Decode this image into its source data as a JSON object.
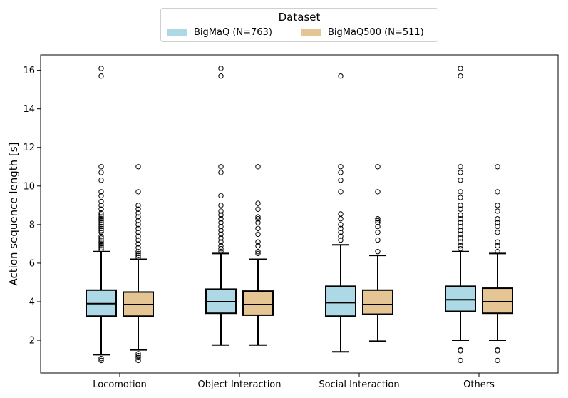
{
  "chart_data": {
    "type": "boxplot",
    "ylabel": "Action sequence length [s]",
    "xlabel": "",
    "ylim": [
      0.3,
      16.8
    ],
    "yticks": [
      2,
      4,
      6,
      8,
      10,
      12,
      14,
      16
    ],
    "categories": [
      "Locomotion",
      "Object Interaction",
      "Social Interaction",
      "Others"
    ],
    "legend": {
      "title": "Dataset",
      "placement": "top-center"
    },
    "series": [
      {
        "name": "BigMaQ (N=763)",
        "color": "#add8e6",
        "boxes": [
          {
            "whislo": 1.25,
            "q1": 3.25,
            "med": 3.9,
            "q3": 4.6,
            "whishi": 6.6,
            "fliers": [
              0.95,
              1.05,
              6.7,
              6.8,
              6.9,
              7.0,
              7.1,
              7.2,
              7.3,
              7.4,
              7.6,
              7.7,
              7.8,
              7.9,
              8.0,
              8.1,
              8.2,
              8.3,
              8.4,
              8.5,
              8.6,
              8.8,
              9.0,
              9.2,
              9.5,
              9.7,
              10.3,
              10.7,
              11.0,
              15.7,
              16.1
            ]
          },
          {
            "whislo": 1.75,
            "q1": 3.4,
            "med": 4.0,
            "q3": 4.65,
            "whishi": 6.5,
            "fliers": [
              6.6,
              6.75,
              6.9,
              7.1,
              7.3,
              7.5,
              7.7,
              7.9,
              8.1,
              8.3,
              8.5,
              8.7,
              9.0,
              9.5,
              10.7,
              11.0,
              15.7,
              16.1
            ]
          },
          {
            "whislo": 1.4,
            "q1": 3.25,
            "med": 3.95,
            "q3": 4.8,
            "whishi": 6.95,
            "fliers": [
              7.2,
              7.4,
              7.6,
              7.8,
              8.0,
              8.3,
              8.55,
              9.7,
              10.3,
              10.7,
              11.0,
              15.7
            ]
          },
          {
            "whislo": 2.0,
            "q1": 3.5,
            "med": 4.1,
            "q3": 4.8,
            "whishi": 6.6,
            "fliers": [
              0.95,
              1.45,
              1.5,
              6.75,
              6.9,
              7.1,
              7.3,
              7.5,
              7.7,
              7.9,
              8.1,
              8.3,
              8.5,
              8.8,
              9.0,
              9.4,
              9.7,
              10.3,
              10.7,
              11.0,
              15.7,
              16.1
            ]
          }
        ]
      },
      {
        "name": "BigMaQ500 (N=511)",
        "color": "#e5c594",
        "boxes": [
          {
            "whislo": 1.5,
            "q1": 3.25,
            "med": 3.85,
            "q3": 4.5,
            "whishi": 6.2,
            "fliers": [
              0.95,
              1.1,
              1.2,
              1.3,
              6.3,
              6.4,
              6.5,
              6.6,
              6.8,
              7.0,
              7.2,
              7.4,
              7.6,
              7.8,
              8.0,
              8.2,
              8.4,
              8.6,
              8.8,
              9.0,
              9.7,
              11.0
            ]
          },
          {
            "whislo": 1.75,
            "q1": 3.3,
            "med": 3.85,
            "q3": 4.55,
            "whishi": 6.2,
            "fliers": [
              6.5,
              6.6,
              6.9,
              7.1,
              7.5,
              7.8,
              8.1,
              8.3,
              8.4,
              8.8,
              9.1,
              11.0
            ]
          },
          {
            "whislo": 1.95,
            "q1": 3.35,
            "med": 3.85,
            "q3": 4.6,
            "whishi": 6.4,
            "fliers": [
              6.6,
              7.2,
              7.6,
              7.9,
              8.1,
              8.2,
              8.3,
              9.7,
              11.0
            ]
          },
          {
            "whislo": 2.0,
            "q1": 3.4,
            "med": 4.0,
            "q3": 4.7,
            "whishi": 6.5,
            "fliers": [
              0.95,
              1.45,
              1.5,
              6.6,
              6.9,
              7.1,
              7.6,
              7.9,
              8.1,
              8.3,
              8.7,
              9.0,
              9.7,
              11.0
            ]
          }
        ]
      }
    ]
  }
}
